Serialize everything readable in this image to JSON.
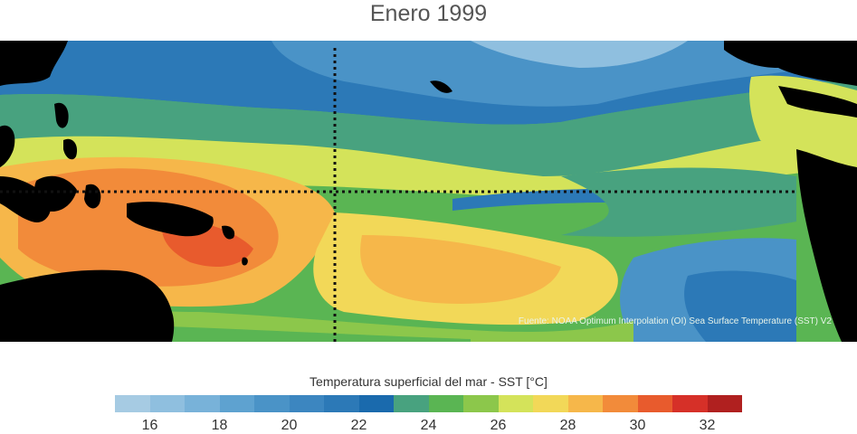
{
  "title": "Enero 1999",
  "source_text": "Fuente: NOAA Optimum Interpolation (OI) Sea Surface Temperature (SST) V2",
  "colorbar": {
    "title": "Temperatura superficial del mar - SST  [°C]",
    "min": 15,
    "max": 33,
    "colors": [
      "#a6cbe3",
      "#8fbfdf",
      "#78b2d9",
      "#5ea2d0",
      "#4a93c7",
      "#3c86c0",
      "#2c79b7",
      "#1a6aad",
      "#48a27f",
      "#5ab553",
      "#8cc74b",
      "#d4e35a",
      "#f2d858",
      "#f6b74a",
      "#f28b3a",
      "#e85b2d",
      "#d63028",
      "#b0201f"
    ],
    "ticks": [
      {
        "value": 16,
        "label": "16"
      },
      {
        "value": 18,
        "label": "18"
      },
      {
        "value": 20,
        "label": "20"
      },
      {
        "value": 22,
        "label": "22"
      },
      {
        "value": 24,
        "label": "24"
      },
      {
        "value": 26,
        "label": "26"
      },
      {
        "value": 28,
        "label": "28"
      },
      {
        "value": 30,
        "label": "30"
      },
      {
        "value": 32,
        "label": "32"
      }
    ]
  }
}
